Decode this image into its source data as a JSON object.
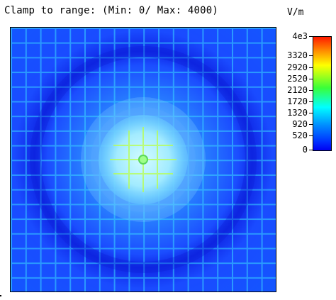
{
  "header": {
    "title": "Clamp to range: (Min: 0/ Max: 4000)",
    "unit": "V/m"
  },
  "colorbar": {
    "ticks": [
      "4e3",
      "3320",
      "2920",
      "2520",
      "2120",
      "1720",
      "1320",
      "920",
      "520",
      "0"
    ],
    "colors": {
      "high": "#ff1a00",
      "mid": "#39ff39",
      "low": "#0000f2"
    }
  },
  "field_view": {
    "description": "electric field magnitude map",
    "grid_cells": 18
  }
}
